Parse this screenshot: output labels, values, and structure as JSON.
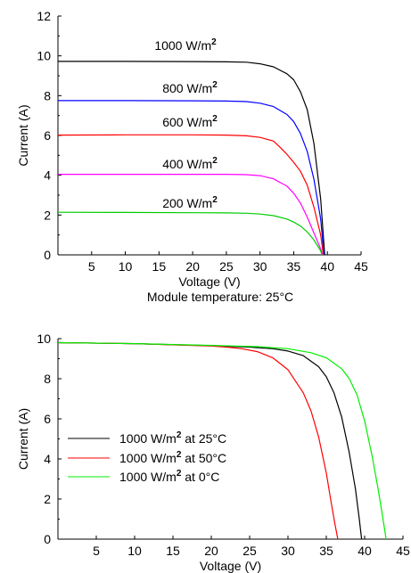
{
  "chart_data": [
    {
      "type": "line",
      "title": "",
      "xlabel": "Voltage (V)",
      "ylabel": "Current (A)",
      "caption": "Module temperature: 25°C",
      "xlim": [
        0,
        45
      ],
      "ylim": [
        0,
        12
      ],
      "x_ticks": [
        "5",
        "10",
        "15",
        "20",
        "25",
        "30",
        "35",
        "40",
        "45"
      ],
      "y_ticks": [
        "0",
        "2",
        "4",
        "6",
        "8",
        "10",
        "12"
      ],
      "grid": false,
      "series": [
        {
          "name": "1000 W/m²",
          "label_main": "1000 W/m",
          "label_sup": "2",
          "color": "#000000",
          "x": [
            0,
            10,
            20,
            25,
            28,
            30,
            32,
            34,
            35,
            36,
            37,
            38,
            39,
            39.6
          ],
          "y": [
            9.72,
            9.72,
            9.71,
            9.7,
            9.68,
            9.6,
            9.45,
            9.1,
            8.8,
            8.2,
            7.3,
            5.6,
            2.8,
            0
          ]
        },
        {
          "name": "800 W/m²",
          "label_main": "800 W/m",
          "label_sup": "2",
          "color": "#0000ff",
          "x": [
            0,
            10,
            20,
            25,
            28,
            30,
            32,
            34,
            35,
            36,
            37,
            38,
            39,
            39.5
          ],
          "y": [
            7.75,
            7.75,
            7.74,
            7.73,
            7.7,
            7.62,
            7.45,
            7.05,
            6.7,
            6.1,
            5.2,
            3.8,
            1.8,
            0
          ]
        },
        {
          "name": "600 W/m²",
          "label_main": "600 W/m",
          "label_sup": "2",
          "color": "#ff0000",
          "x": [
            0,
            10,
            20,
            25,
            28,
            30,
            32,
            33,
            34,
            35,
            36,
            37,
            38,
            39,
            39.4
          ],
          "y": [
            6.02,
            6.03,
            6.03,
            6.02,
            5.98,
            5.9,
            5.72,
            5.4,
            5.05,
            4.65,
            4.2,
            3.5,
            2.4,
            1.0,
            0
          ]
        },
        {
          "name": "400 W/m²",
          "label_main": "400 W/m",
          "label_sup": "2",
          "color": "#ff00ff",
          "x": [
            0,
            10,
            20,
            25,
            28,
            30,
            32,
            34,
            35,
            36,
            37,
            38,
            39,
            39.3
          ],
          "y": [
            4.05,
            4.05,
            4.05,
            4.05,
            4.03,
            3.98,
            3.82,
            3.45,
            3.1,
            2.6,
            1.9,
            1.1,
            0.3,
            0
          ]
        },
        {
          "name": "200 W/m²",
          "label_main": "200 W/m",
          "label_sup": "2",
          "color": "#00cc00",
          "x": [
            0,
            10,
            20,
            25,
            28,
            30,
            32,
            34,
            35,
            36,
            37,
            38,
            39,
            39.2
          ],
          "y": [
            2.14,
            2.13,
            2.12,
            2.11,
            2.09,
            2.05,
            1.97,
            1.8,
            1.65,
            1.45,
            1.15,
            0.75,
            0.2,
            0
          ]
        }
      ]
    },
    {
      "type": "line",
      "title": "",
      "xlabel": "Voltage (V)",
      "ylabel": "Current (A)",
      "xlim": [
        0,
        45
      ],
      "ylim": [
        0,
        10
      ],
      "x_ticks": [
        "5",
        "10",
        "15",
        "20",
        "25",
        "30",
        "35",
        "40",
        "45"
      ],
      "y_ticks": [
        "0",
        "2",
        "4",
        "6",
        "8",
        "10"
      ],
      "grid": false,
      "legend": "lower-left",
      "series": [
        {
          "name": "1000 W/m² at 25°C",
          "label_main": "1000 W/m",
          "label_sup": "2",
          "label_rest": " at 25°C",
          "color": "#000000",
          "x": [
            0,
            10,
            20,
            25,
            28,
            30,
            32,
            34,
            35,
            36,
            37,
            38,
            38.8,
            39.3,
            39.6
          ],
          "y": [
            9.8,
            9.75,
            9.65,
            9.58,
            9.5,
            9.38,
            9.15,
            8.6,
            8.1,
            7.3,
            6.1,
            4.3,
            2.5,
            1.0,
            0
          ]
        },
        {
          "name": "1000 W/m² at 50°C",
          "label_main": "1000 W/m",
          "label_sup": "2",
          "label_rest": " at 50°C",
          "color": "#ff0000",
          "x": [
            0,
            10,
            20,
            22,
            24,
            26,
            28,
            30,
            32,
            33,
            34,
            35,
            35.6,
            36.1,
            36.5
          ],
          "y": [
            9.8,
            9.75,
            9.63,
            9.58,
            9.5,
            9.35,
            9.05,
            8.45,
            7.3,
            6.4,
            5.1,
            3.3,
            1.9,
            0.8,
            0
          ]
        },
        {
          "name": "1000 W/m² at 0°C",
          "label_main": "1000 W/m",
          "label_sup": "2",
          "label_rest": " at 0°C",
          "color": "#00ee00",
          "x": [
            0,
            10,
            20,
            26,
            30,
            33,
            35,
            37,
            38,
            39,
            40,
            41,
            41.8,
            42.4,
            42.8
          ],
          "y": [
            9.8,
            9.75,
            9.66,
            9.6,
            9.5,
            9.3,
            9.05,
            8.5,
            8.0,
            7.2,
            5.9,
            4.1,
            2.4,
            1.0,
            0
          ]
        }
      ]
    }
  ]
}
